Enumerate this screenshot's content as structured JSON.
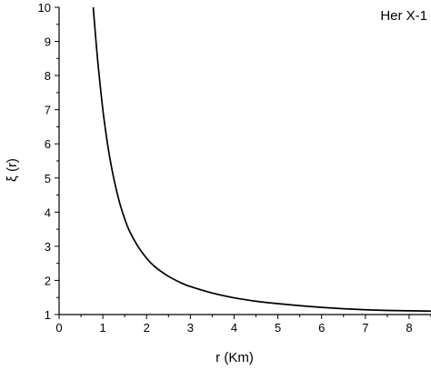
{
  "chart_data": {
    "type": "line",
    "annotation": "Her X-1",
    "xlabel": "r (Km)",
    "ylabel": "ξ (r)",
    "xlim": [
      0,
      8.5
    ],
    "ylim": [
      1,
      10
    ],
    "xticks": [
      "0",
      "1",
      "2",
      "3",
      "4",
      "5",
      "6",
      "7",
      "8"
    ],
    "yticks": [
      "1",
      "2",
      "3",
      "4",
      "5",
      "6",
      "7",
      "8",
      "9",
      "10"
    ],
    "grid": false,
    "legend": "none",
    "series": [
      {
        "color": "#000000",
        "x": [
          0.78,
          0.85,
          0.9,
          1.0,
          1.1,
          1.2,
          1.3,
          1.4,
          1.5,
          1.6,
          1.8,
          2.0,
          2.2,
          2.5,
          2.8,
          3.0,
          3.5,
          4.0,
          4.5,
          5.0,
          5.5,
          6.0,
          6.5,
          7.0,
          7.5,
          8.0,
          8.5
        ],
        "y": [
          10.0,
          8.9,
          8.2,
          7.0,
          6.05,
          5.3,
          4.7,
          4.2,
          3.8,
          3.47,
          3.0,
          2.65,
          2.39,
          2.12,
          1.92,
          1.82,
          1.63,
          1.49,
          1.39,
          1.32,
          1.26,
          1.21,
          1.17,
          1.14,
          1.12,
          1.11,
          1.1
        ]
      }
    ]
  }
}
